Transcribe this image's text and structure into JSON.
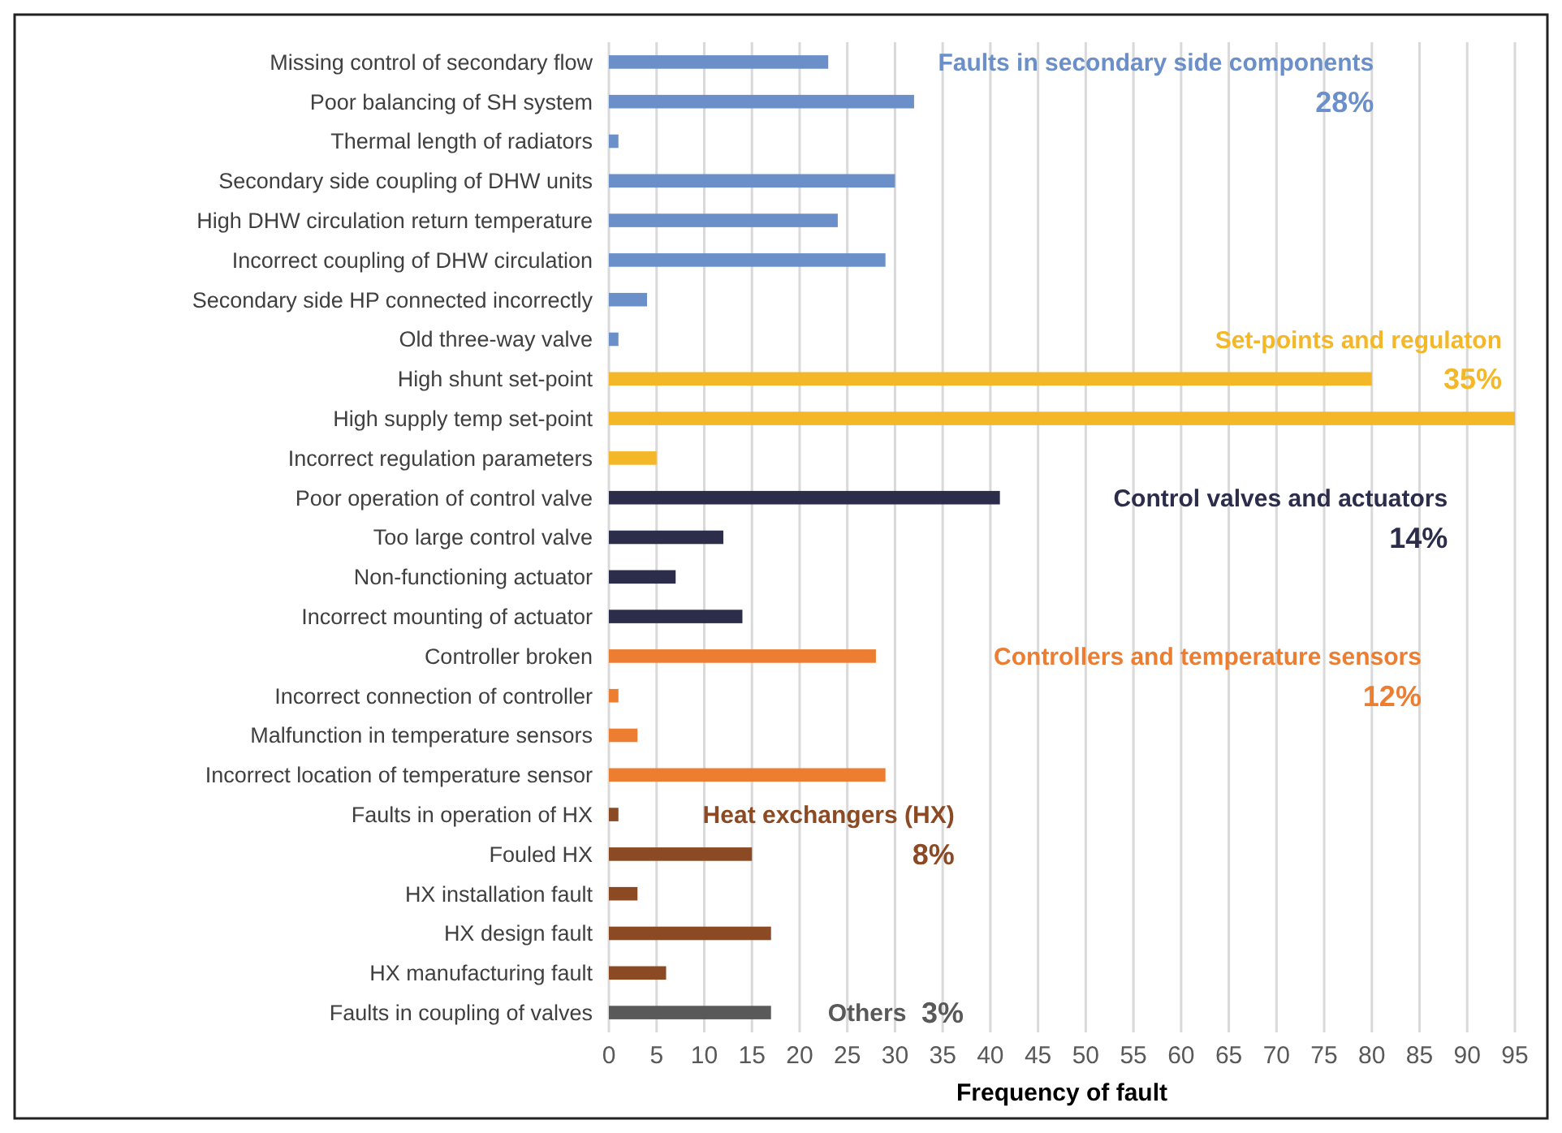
{
  "chart_data": {
    "type": "bar",
    "orientation": "horizontal",
    "xlabel": "Frequency of fault",
    "categories": [
      "Missing control of secondary flow",
      "Poor balancing of SH system",
      "Thermal length of radiators",
      "Secondary side coupling of DHW units",
      "High DHW circulation return temperature",
      "Incorrect coupling of DHW circulation",
      "Secondary side HP connected incorrectly",
      "Old three-way valve",
      "High shunt set-point",
      "High supply temp set-point",
      "Incorrect regulation parameters",
      "Poor operation of control valve",
      "Too large control valve",
      "Non-functioning actuator",
      "Incorrect mounting of actuator",
      "Controller broken",
      "Incorrect connection of controller",
      "Malfunction in temperature sensors",
      "Incorrect location of temperature sensor",
      "Faults in operation of HX",
      "Fouled HX",
      "HX installation fault",
      "HX design fault",
      "HX manufacturing  fault",
      "Faults in coupling of valves"
    ],
    "values": [
      23,
      32,
      1,
      30,
      24,
      29,
      4,
      1,
      80,
      95,
      5,
      41,
      12,
      7,
      14,
      28,
      1,
      3,
      29,
      1,
      15,
      3,
      17,
      6,
      17
    ],
    "colors": [
      "#6a8fc9",
      "#6a8fc9",
      "#6a8fc9",
      "#6a8fc9",
      "#6a8fc9",
      "#6a8fc9",
      "#6a8fc9",
      "#6a8fc9",
      "#f4b728",
      "#f4b728",
      "#f4b728",
      "#2b2d4a",
      "#2b2d4a",
      "#2b2d4a",
      "#2b2d4a",
      "#ed7d31",
      "#ed7d31",
      "#ed7d31",
      "#ed7d31",
      "#8b4a24",
      "#8b4a24",
      "#8b4a24",
      "#8b4a24",
      "#8b4a24",
      "#595959"
    ],
    "xlim": [
      0,
      95
    ],
    "xticks": [
      0,
      5,
      10,
      15,
      20,
      25,
      30,
      35,
      40,
      45,
      50,
      55,
      60,
      65,
      70,
      75,
      80,
      85,
      90,
      95
    ],
    "grid": "x",
    "annotations": [
      "Faults in secondary side components",
      "28%",
      "Set-points and regulaton",
      "35%",
      "Control valves and actuators",
      "14%",
      "Controllers and temperature sensors",
      "12%",
      "Heat exchangers (HX)",
      "8%",
      "Others",
      "3%"
    ]
  }
}
